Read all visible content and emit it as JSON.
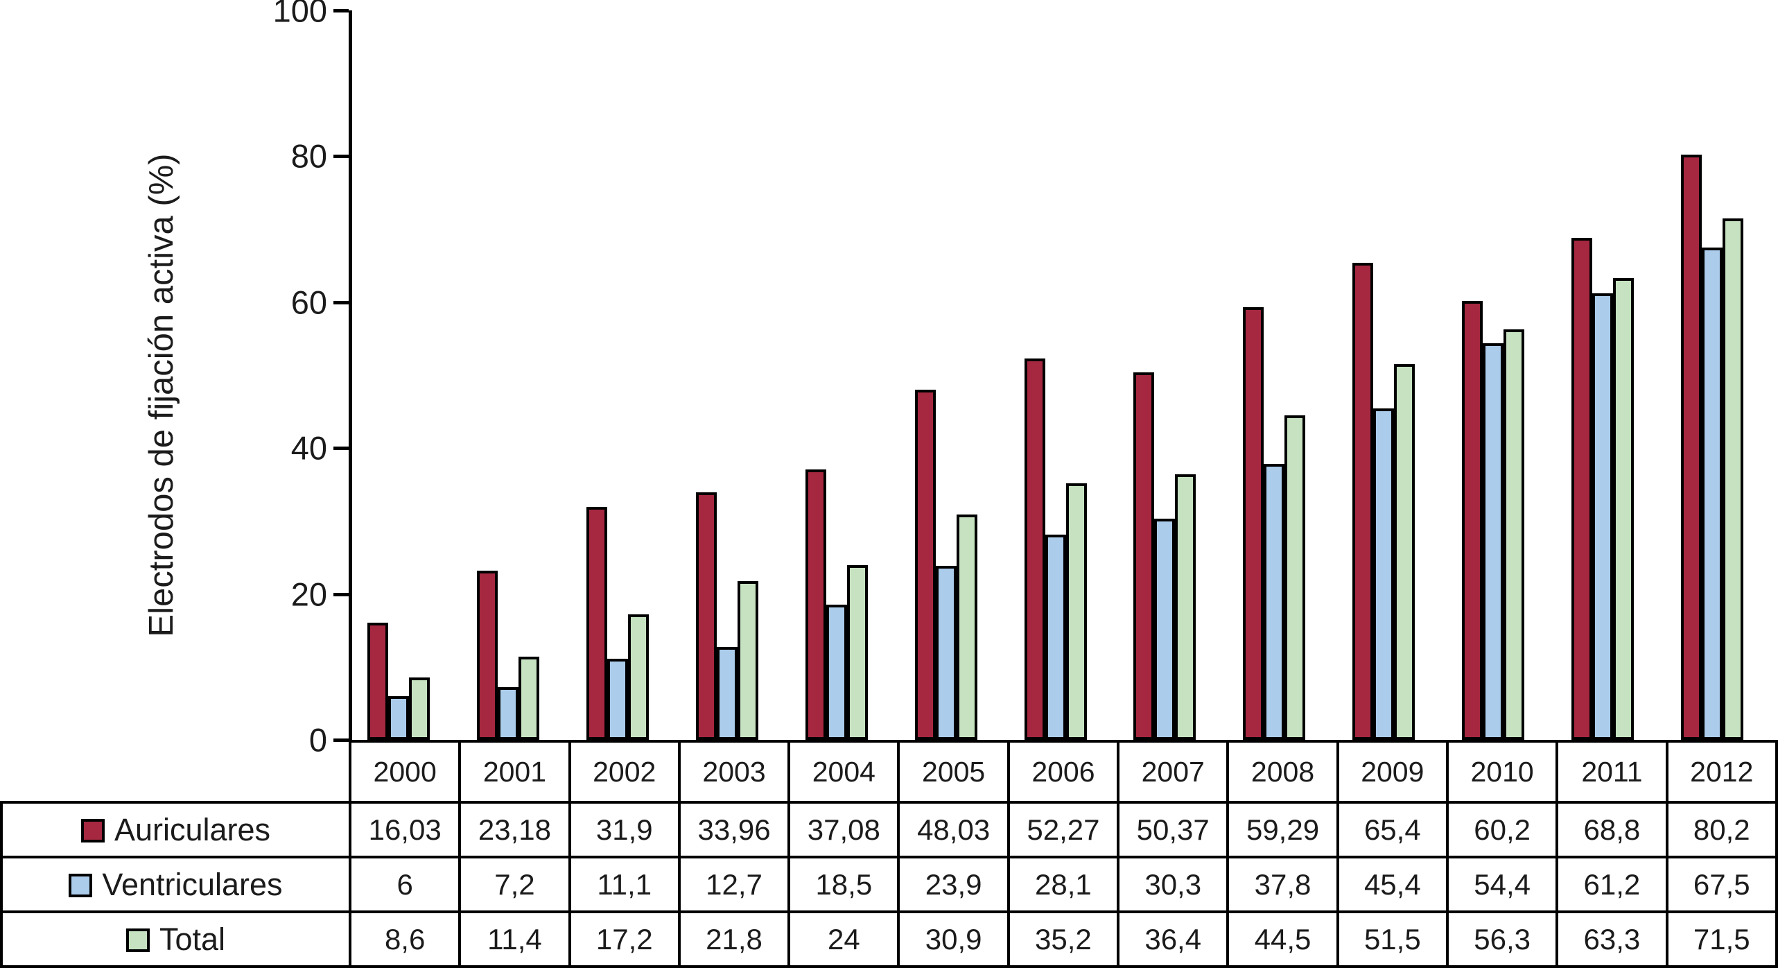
{
  "chart_data": {
    "type": "bar",
    "title": "",
    "xlabel": "",
    "ylabel": "Electrodos de fijación activa (%)",
    "ylim": [
      0,
      100
    ],
    "yticks": [
      0,
      20,
      40,
      60,
      80,
      100
    ],
    "grid": false,
    "legend_position": "table-left",
    "categories": [
      "2000",
      "2001",
      "2002",
      "2003",
      "2004",
      "2005",
      "2006",
      "2007",
      "2008",
      "2009",
      "2010",
      "2011",
      "2012"
    ],
    "series": [
      {
        "name": "Auriculares",
        "color": "#A62840",
        "values": [
          16.03,
          23.18,
          31.9,
          33.96,
          37.08,
          48.03,
          52.27,
          50.37,
          59.29,
          65.4,
          60.2,
          68.8,
          80.2
        ],
        "display": [
          "16,03",
          "23,18",
          "31,9",
          "33,96",
          "37,08",
          "48,03",
          "52,27",
          "50,37",
          "59,29",
          "65,4",
          "60,2",
          "68,8",
          "80,2"
        ]
      },
      {
        "name": "Ventriculares",
        "color": "#ABCCEB",
        "values": [
          6,
          7.2,
          11.1,
          12.7,
          18.5,
          23.9,
          28.1,
          30.3,
          37.8,
          45.4,
          54.4,
          61.2,
          67.5
        ],
        "display": [
          "6",
          "7,2",
          "11,1",
          "12,7",
          "18,5",
          "23,9",
          "28,1",
          "30,3",
          "37,8",
          "45,4",
          "54,4",
          "61,2",
          "67,5"
        ]
      },
      {
        "name": "Total",
        "color": "#C7E2C1",
        "values": [
          8.6,
          11.4,
          17.2,
          21.8,
          24,
          30.9,
          35.2,
          36.4,
          44.5,
          51.5,
          56.3,
          63.3,
          71.5
        ],
        "display": [
          "8,6",
          "11,4",
          "17,2",
          "21,8",
          "24",
          "30,9",
          "35,2",
          "36,4",
          "44,5",
          "51,5",
          "56,3",
          "63,3",
          "71,5"
        ]
      }
    ]
  }
}
